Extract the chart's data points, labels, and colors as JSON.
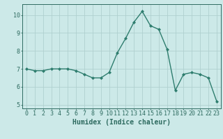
{
  "x": [
    0,
    1,
    2,
    3,
    4,
    5,
    6,
    7,
    8,
    9,
    10,
    11,
    12,
    13,
    14,
    15,
    16,
    17,
    18,
    19,
    20,
    21,
    22,
    23
  ],
  "y": [
    7.0,
    6.9,
    6.9,
    7.0,
    7.0,
    7.0,
    6.9,
    6.7,
    6.5,
    6.5,
    6.8,
    7.9,
    8.7,
    9.6,
    10.2,
    9.4,
    9.2,
    8.1,
    5.8,
    6.7,
    6.8,
    6.7,
    6.5,
    5.2
  ],
  "line_color": "#2e7d6e",
  "marker": "D",
  "marker_size": 2.0,
  "bg_color": "#cce9e8",
  "grid_color": "#b0d0cf",
  "axis_color": "#2e6b60",
  "xlabel": "Humidex (Indice chaleur)",
  "xlabel_fontsize": 7,
  "tick_fontsize": 6,
  "xlim": [
    -0.5,
    23.5
  ],
  "ylim": [
    4.8,
    10.6
  ],
  "yticks": [
    5,
    6,
    7,
    8,
    9,
    10
  ]
}
